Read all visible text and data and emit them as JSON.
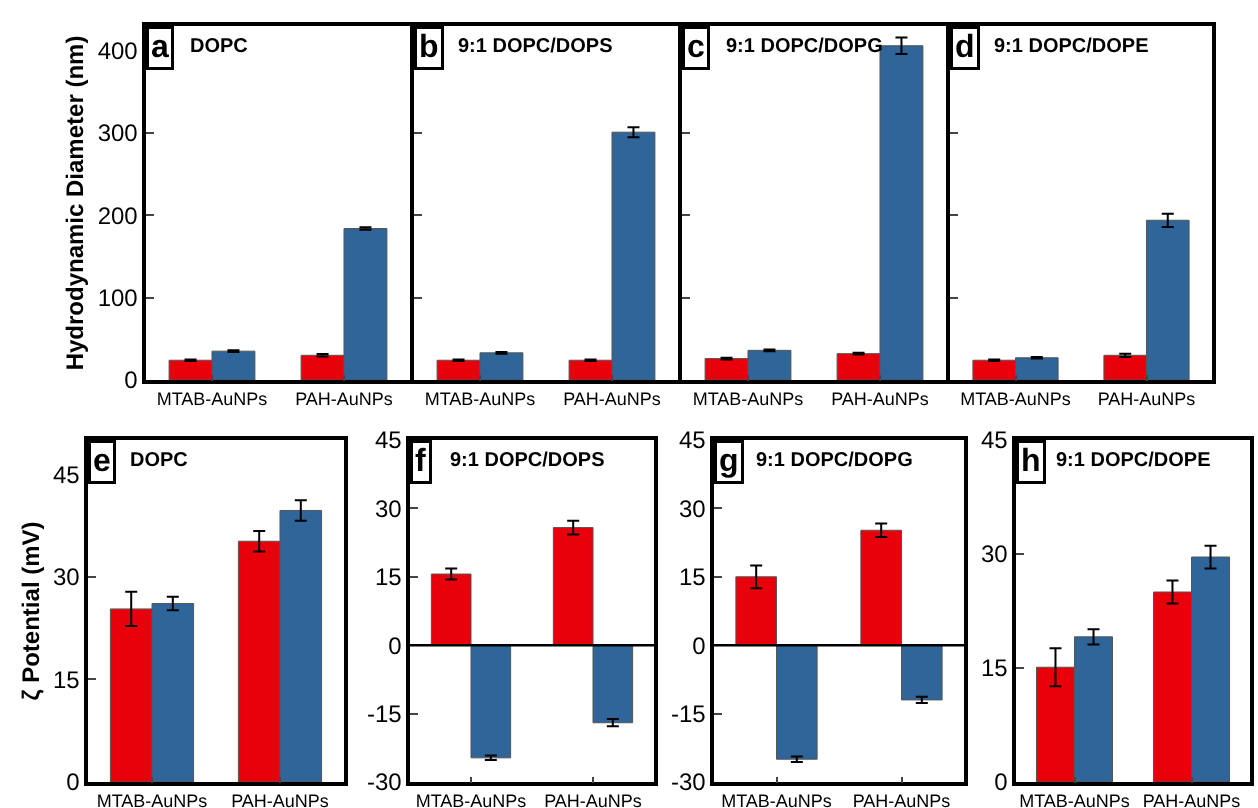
{
  "chart_data": [
    {
      "type": "bar",
      "title": "DOPC",
      "ylabel": "Hydrodynamic Diameter (nm)",
      "annotations": [
        "a"
      ],
      "categories": [
        "MTAB-AuNPs",
        "PAH-AuNPs"
      ],
      "ylim": [
        0,
        430
      ],
      "yticks": [
        0,
        100,
        200,
        300,
        400
      ],
      "series": [
        {
          "color": "#e8000b",
          "values": [
            24,
            30
          ],
          "errors": [
            1,
            1.5
          ]
        },
        {
          "color": "#2f6599",
          "values": [
            35,
            184
          ],
          "errors": [
            1,
            1.5
          ]
        }
      ]
    },
    {
      "type": "bar",
      "title": "9:1 DOPC/DOPS",
      "annotations": [
        "b"
      ],
      "categories": [
        "MTAB-AuNPs",
        "PAH-AuNPs"
      ],
      "ylim": [
        0,
        430
      ],
      "yticks": [
        0,
        100,
        200,
        300,
        400
      ],
      "tick_labels": "x",
      "series": [
        {
          "color": "#e8000b",
          "values": [
            24,
            24
          ],
          "errors": [
            1,
            1
          ]
        },
        {
          "color": "#2f6599",
          "values": [
            33,
            301
          ],
          "errors": [
            1,
            6
          ]
        }
      ]
    },
    {
      "type": "bar",
      "title": "9:1 DOPC/DOPG",
      "annotations": [
        "c"
      ],
      "categories": [
        "MTAB-AuNPs",
        "PAH-AuNPs"
      ],
      "ylim": [
        0,
        430
      ],
      "yticks": [
        0,
        100,
        200,
        300,
        400
      ],
      "tick_labels": "x",
      "series": [
        {
          "color": "#e8000b",
          "values": [
            26,
            32
          ],
          "errors": [
            1,
            1
          ]
        },
        {
          "color": "#2f6599",
          "values": [
            36,
            406
          ],
          "errors": [
            1,
            10
          ]
        }
      ]
    },
    {
      "type": "bar",
      "title": "9:1 DOPC/DOPE",
      "annotations": [
        "d"
      ],
      "categories": [
        "MTAB-AuNPs",
        "PAH-AuNPs"
      ],
      "ylim": [
        0,
        430
      ],
      "yticks": [
        0,
        100,
        200,
        300,
        400
      ],
      "tick_labels": "x",
      "series": [
        {
          "color": "#e8000b",
          "values": [
            24,
            30
          ],
          "errors": [
            1,
            2
          ]
        },
        {
          "color": "#2f6599",
          "values": [
            27,
            194
          ],
          "errors": [
            1,
            8
          ]
        }
      ]
    },
    {
      "type": "bar",
      "title": "DOPC",
      "ylabel": "ζ Potential (mV)",
      "annotations": [
        "e"
      ],
      "categories": [
        "MTAB-AuNPs",
        "PAH-AuNPs"
      ],
      "ylim": [
        0,
        50
      ],
      "yticks": [
        0,
        15,
        30,
        45
      ],
      "series": [
        {
          "color": "#e8000b",
          "values": [
            25.3,
            35.2
          ],
          "errors": [
            2.5,
            1.5
          ]
        },
        {
          "color": "#2f6599",
          "values": [
            26.1,
            39.7
          ],
          "errors": [
            1,
            1.5
          ]
        }
      ]
    },
    {
      "type": "bar",
      "title": "9:1 DOPC/DOPS",
      "annotations": [
        "f"
      ],
      "categories": [
        "MTAB-AuNPs",
        "PAH-AuNPs"
      ],
      "ylim": [
        -30,
        45
      ],
      "yticks": [
        -30,
        -15,
        0,
        15,
        30,
        45
      ],
      "ref_lines": [
        {
          "axis": "y",
          "value": 0,
          "color": "#000000"
        }
      ],
      "series": [
        {
          "color": "#e8000b",
          "values": [
            15.6,
            25.8
          ],
          "errors": [
            1.2,
            1.5
          ]
        },
        {
          "color": "#2f6599",
          "values": [
            -24.7,
            -17
          ],
          "errors": [
            0.5,
            0.8
          ]
        }
      ]
    },
    {
      "type": "bar",
      "title": "9:1 DOPC/DOPG",
      "annotations": [
        "g"
      ],
      "categories": [
        "MTAB-AuNPs",
        "PAH-AuNPs"
      ],
      "ylim": [
        -30,
        45
      ],
      "yticks": [
        -30,
        -15,
        0,
        15,
        30,
        45
      ],
      "ref_lines": [
        {
          "axis": "y",
          "value": 0,
          "color": "#000000"
        }
      ],
      "series": [
        {
          "color": "#e8000b",
          "values": [
            15,
            25.2
          ],
          "errors": [
            2.5,
            1.5
          ]
        },
        {
          "color": "#2f6599",
          "values": [
            -25,
            -12
          ],
          "errors": [
            0.6,
            0.7
          ]
        }
      ]
    },
    {
      "type": "bar",
      "title": "9:1 DOPC/DOPE",
      "annotations": [
        "h"
      ],
      "categories": [
        "MTAB-AuNPs",
        "PAH-AuNPs"
      ],
      "ylim": [
        0,
        45
      ],
      "yticks": [
        0,
        15,
        30,
        45
      ],
      "series": [
        {
          "color": "#e8000b",
          "values": [
            15.1,
            25
          ],
          "errors": [
            2.5,
            1.5
          ]
        },
        {
          "color": "#2f6599",
          "values": [
            19.1,
            29.6
          ],
          "errors": [
            1,
            1.5
          ]
        }
      ]
    }
  ]
}
